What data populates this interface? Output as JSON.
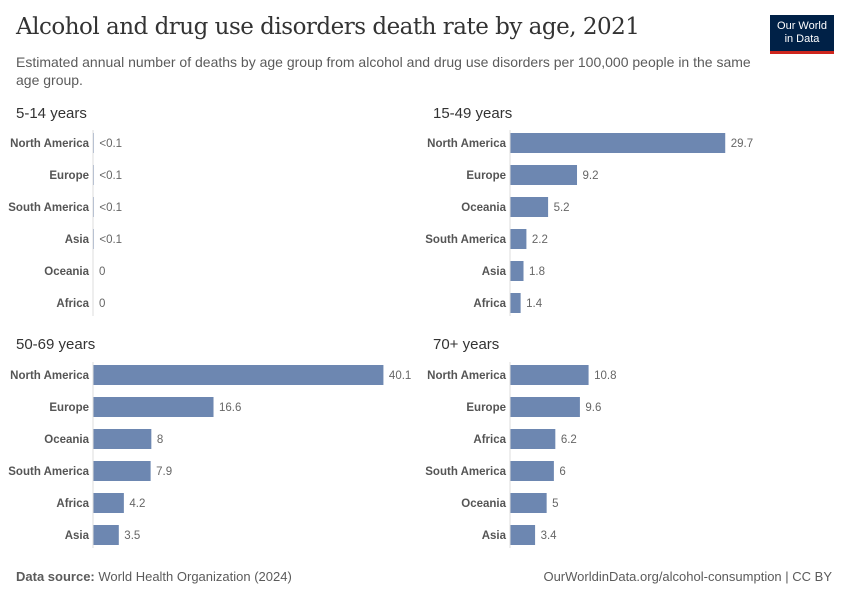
{
  "header": {
    "title": "Alcohol and drug use disorders death rate by age, 2021",
    "subtitle": "Estimated annual number of deaths by age group from alcohol and drug use disorders per 100,000 people in the same age group.",
    "logo_line1": "Our World",
    "logo_line2": "in Data"
  },
  "footer": {
    "source_label": "Data source:",
    "source": "World Health Organization (2024)",
    "url": "OurWorldinData.org/alcohol-consumption | CC BY"
  },
  "colors": {
    "bar": "#6d87b1",
    "axis": "#dddddd"
  },
  "chart_data": [
    {
      "type": "bar",
      "orientation": "horizontal",
      "title": "5-14 years",
      "categories": [
        "North America",
        "Europe",
        "South America",
        "Asia",
        "Oceania",
        "Africa"
      ],
      "values": [
        0.05,
        0.05,
        0.05,
        0.05,
        0,
        0
      ],
      "labels": [
        "<0.1",
        "<0.1",
        "<0.1",
        "<0.1",
        "0",
        "0"
      ]
    },
    {
      "type": "bar",
      "orientation": "horizontal",
      "title": "15-49 years",
      "categories": [
        "North America",
        "Europe",
        "Oceania",
        "South America",
        "Asia",
        "Africa"
      ],
      "values": [
        29.7,
        9.2,
        5.2,
        2.2,
        1.8,
        1.4
      ],
      "labels": [
        "29.7",
        "9.2",
        "5.2",
        "2.2",
        "1.8",
        "1.4"
      ]
    },
    {
      "type": "bar",
      "orientation": "horizontal",
      "title": "50-69 years",
      "categories": [
        "North America",
        "Europe",
        "Oceania",
        "South America",
        "Africa",
        "Asia"
      ],
      "values": [
        40.1,
        16.6,
        8,
        7.9,
        4.2,
        3.5
      ],
      "labels": [
        "40.1",
        "16.6",
        "8",
        "7.9",
        "4.2",
        "3.5"
      ]
    },
    {
      "type": "bar",
      "orientation": "horizontal",
      "title": "70+ years",
      "categories": [
        "North America",
        "Europe",
        "Africa",
        "South America",
        "Oceania",
        "Asia"
      ],
      "values": [
        10.8,
        9.6,
        6.2,
        6,
        5,
        3.4
      ],
      "labels": [
        "10.8",
        "9.6",
        "6.2",
        "6",
        "5",
        "3.4"
      ]
    }
  ]
}
